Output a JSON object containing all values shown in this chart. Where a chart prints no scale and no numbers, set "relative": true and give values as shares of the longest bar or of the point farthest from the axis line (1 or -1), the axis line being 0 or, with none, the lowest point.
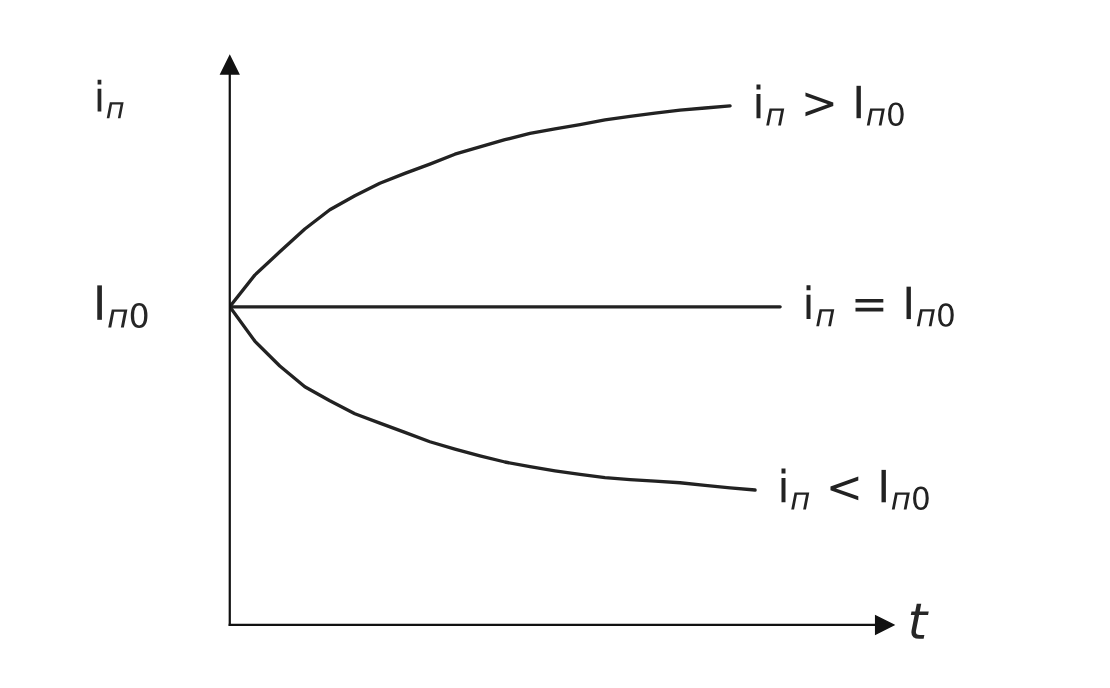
{
  "chart_data": {
    "type": "line",
    "relative": true,
    "xlabel": "t",
    "ylabel": "i$_{п}$",
    "categories": [
      null,
      null,
      null,
      null,
      null,
      null,
      null,
      null,
      null,
      null,
      null,
      null,
      null,
      null,
      null,
      null,
      null,
      null,
      null,
      null,
      null,
      null,
      null
    ],
    "series": [
      {
        "name": "i$_{п}$ > I$_{п0}$",
        "color": "#222222",
        "values": [
          0.613,
          0.674,
          0.719,
          0.763,
          0.8,
          0.827,
          0.851,
          0.87,
          0.888,
          0.907,
          0.921,
          0.935,
          0.947,
          0.956,
          0.964,
          0.973,
          0.98,
          0.986,
          0.992,
          0.996,
          1.0,
          null,
          null
        ]
      },
      {
        "name": "i$_{п}$ = I$_{п0}$",
        "color": "#222222",
        "values": [
          0.613,
          0.613,
          0.613,
          0.613,
          0.613,
          0.613,
          0.613,
          0.613,
          0.613,
          0.613,
          0.613,
          0.613,
          0.613,
          0.613,
          0.613,
          0.613,
          0.613,
          0.613,
          0.613,
          0.613,
          0.613,
          0.613,
          0.613
        ]
      },
      {
        "name": "i$_{п}$ < I$_{п0}$",
        "color": "#222222",
        "values": [
          0.613,
          0.547,
          0.499,
          0.459,
          0.432,
          0.407,
          0.389,
          0.371,
          0.353,
          0.339,
          0.326,
          0.314,
          0.305,
          0.297,
          0.29,
          0.284,
          0.28,
          0.277,
          0.274,
          0.269,
          0.264,
          0.26,
          null
        ]
      }
    ],
    "annotations": [
      "I$_{п0}$"
    ]
  }
}
